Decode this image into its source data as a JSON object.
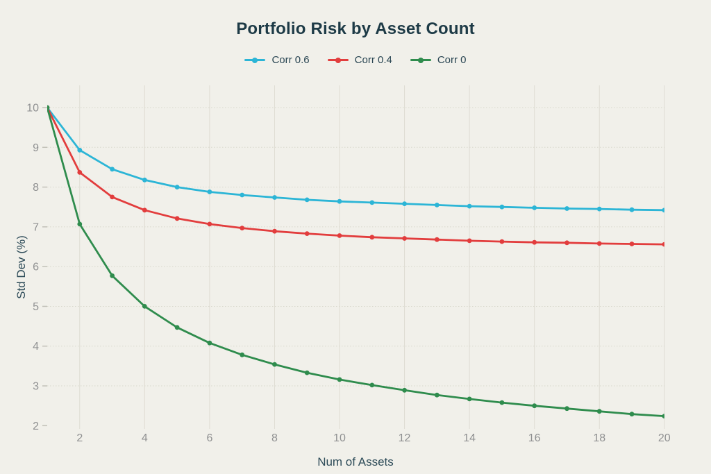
{
  "title": "Portfolio Risk by Asset Count",
  "legend": {
    "items": [
      {
        "label": "Corr 0.6",
        "color": "#2cb5d6"
      },
      {
        "label": "Corr 0.4",
        "color": "#e23d3d"
      },
      {
        "label": "Corr 0",
        "color": "#2f8c4d"
      }
    ]
  },
  "colors": {
    "background": "#f1f0ea",
    "grid_vertical": "#dedcd3",
    "grid_horizontal": "#d8d7cc",
    "tick_mark": "#c2c1b8",
    "tick_label": "#8f9091",
    "title_text": "#1d3a46",
    "axis_title_text": "#2d4b58"
  },
  "chart_data": {
    "type": "line",
    "title": "Portfolio Risk by Asset Count",
    "xlabel": "Num of Assets",
    "ylabel": "Std Dev (%)",
    "x": [
      1,
      2,
      3,
      4,
      5,
      6,
      7,
      8,
      9,
      10,
      11,
      12,
      13,
      14,
      15,
      16,
      17,
      18,
      19,
      20
    ],
    "series": [
      {
        "name": "Corr 0.6",
        "color": "#2cb5d6",
        "values": [
          10,
          8.93,
          8.45,
          8.18,
          8.0,
          7.88,
          7.8,
          7.74,
          7.68,
          7.64,
          7.61,
          7.58,
          7.55,
          7.52,
          7.5,
          7.48,
          7.46,
          7.45,
          7.43,
          7.42
        ]
      },
      {
        "name": "Corr 0.4",
        "color": "#e23d3d",
        "values": [
          10,
          8.37,
          7.75,
          7.42,
          7.21,
          7.07,
          6.97,
          6.89,
          6.83,
          6.78,
          6.74,
          6.71,
          6.68,
          6.65,
          6.63,
          6.61,
          6.6,
          6.58,
          6.57,
          6.56
        ]
      },
      {
        "name": "Corr 0",
        "color": "#2f8c4d",
        "values": [
          10,
          7.07,
          5.77,
          5.0,
          4.47,
          4.08,
          3.78,
          3.54,
          3.33,
          3.16,
          3.02,
          2.89,
          2.77,
          2.67,
          2.58,
          2.5,
          2.43,
          2.36,
          2.29,
          2.24
        ]
      }
    ],
    "xlim": [
      1,
      20
    ],
    "ylim": [
      2,
      10
    ],
    "x_ticks": [
      2,
      4,
      6,
      8,
      10,
      12,
      14,
      16,
      18,
      20
    ],
    "y_ticks": [
      2,
      3,
      4,
      5,
      6,
      7,
      8,
      9,
      10
    ],
    "grid": true,
    "legend_position": "top",
    "marker": "dot"
  }
}
